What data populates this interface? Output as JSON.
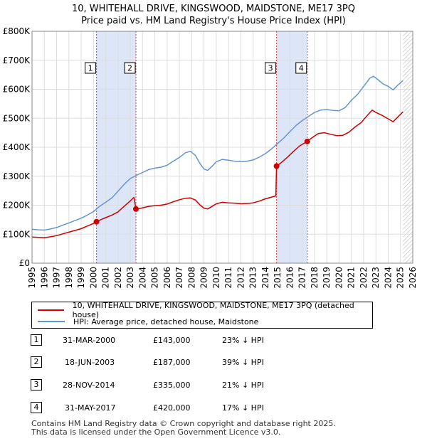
{
  "title_line1": "10, WHITEHALL DRIVE, KINGSWOOD, MAIDSTONE, ME17 3PQ",
  "title_line2": "Price paid vs. HM Land Registry's House Price Index (HPI)",
  "colors": {
    "property": "#cc0000",
    "hpi": "#6495d1",
    "shade": "#dde6f8",
    "marker_line": "#d04040",
    "grid": "#dddddd"
  },
  "chart_data": {
    "type": "line",
    "x_range": [
      1995,
      2026
    ],
    "ylim": [
      0,
      800000
    ],
    "y_ticks": [
      0,
      100000,
      200000,
      300000,
      400000,
      500000,
      600000,
      700000,
      800000
    ],
    "y_tick_labels": [
      "£0",
      "£100K",
      "£200K",
      "£300K",
      "£400K",
      "£500K",
      "£600K",
      "£700K",
      "£800K"
    ],
    "x_ticks": [
      1995,
      1996,
      1997,
      1998,
      1999,
      2000,
      2001,
      2002,
      2003,
      2004,
      2005,
      2006,
      2007,
      2008,
      2009,
      2010,
      2011,
      2012,
      2013,
      2014,
      2015,
      2016,
      2017,
      2018,
      2019,
      2020,
      2021,
      2022,
      2023,
      2024,
      2025,
      2026
    ],
    "x_tick_labels": [
      "1995",
      "1996",
      "1997",
      "1998",
      "1999",
      "2000",
      "2001",
      "2002",
      "2003",
      "2004",
      "2005",
      "2006",
      "2007",
      "2008",
      "2009",
      "2010",
      "2011",
      "2012",
      "2013",
      "2014",
      "2015",
      "2016",
      "2017",
      "2018",
      "2019",
      "2020",
      "2021",
      "2022",
      "2023",
      "2024",
      "2025",
      "2026"
    ],
    "shaded_ranges": [
      [
        2000.25,
        2003.46
      ],
      [
        2014.91,
        2017.41
      ]
    ],
    "forecast_start": 2025.2,
    "series": [
      {
        "name": "10, WHITEHALL DRIVE, KINGSWOOD, MAIDSTONE, ME17 3PQ (detached house)",
        "points": [
          [
            1995.0,
            90000
          ],
          [
            1995.5,
            89000
          ],
          [
            1996.0,
            88000
          ],
          [
            1996.5,
            91000
          ],
          [
            1997.0,
            95000
          ],
          [
            1997.5,
            101000
          ],
          [
            1998.0,
            107000
          ],
          [
            1998.5,
            113000
          ],
          [
            1999.0,
            119000
          ],
          [
            1999.5,
            128000
          ],
          [
            2000.0,
            137000
          ],
          [
            2000.25,
            143000
          ],
          [
            2000.7,
            152000
          ],
          [
            2001.0,
            157000
          ],
          [
            2001.5,
            166000
          ],
          [
            2002.0,
            177000
          ],
          [
            2002.5,
            196000
          ],
          [
            2003.0,
            215000
          ],
          [
            2003.3,
            227000
          ],
          [
            2003.46,
            187000
          ],
          [
            2003.8,
            189000
          ],
          [
            2004.5,
            196000
          ],
          [
            2005.0,
            198000
          ],
          [
            2005.5,
            200000
          ],
          [
            2006.0,
            204000
          ],
          [
            2006.5,
            212000
          ],
          [
            2007.0,
            219000
          ],
          [
            2007.5,
            224000
          ],
          [
            2007.9,
            225000
          ],
          [
            2008.3,
            218000
          ],
          [
            2008.7,
            200000
          ],
          [
            2009.0,
            190000
          ],
          [
            2009.3,
            187000
          ],
          [
            2009.7,
            197000
          ],
          [
            2010.0,
            205000
          ],
          [
            2010.5,
            210000
          ],
          [
            2011.0,
            208000
          ],
          [
            2011.5,
            207000
          ],
          [
            2012.0,
            205000
          ],
          [
            2012.5,
            206000
          ],
          [
            2013.0,
            208000
          ],
          [
            2013.5,
            214000
          ],
          [
            2014.0,
            222000
          ],
          [
            2014.5,
            228000
          ],
          [
            2014.85,
            232000
          ],
          [
            2014.91,
            335000
          ],
          [
            2015.3,
            347000
          ],
          [
            2015.8,
            366000
          ],
          [
            2016.3,
            386000
          ],
          [
            2016.8,
            405000
          ],
          [
            2017.41,
            420000
          ],
          [
            2017.8,
            433000
          ],
          [
            2018.3,
            447000
          ],
          [
            2018.8,
            450000
          ],
          [
            2019.3,
            445000
          ],
          [
            2019.8,
            440000
          ],
          [
            2020.3,
            441000
          ],
          [
            2020.8,
            452000
          ],
          [
            2021.3,
            470000
          ],
          [
            2021.8,
            485000
          ],
          [
            2022.3,
            510000
          ],
          [
            2022.7,
            528000
          ],
          [
            2023.0,
            520000
          ],
          [
            2023.5,
            510000
          ],
          [
            2024.0,
            498000
          ],
          [
            2024.4,
            488000
          ],
          [
            2024.8,
            505000
          ],
          [
            2025.2,
            522000
          ]
        ]
      },
      {
        "name": "HPI: Average price, detached house, Maidstone",
        "points": [
          [
            1995.0,
            117000
          ],
          [
            1995.5,
            115000
          ],
          [
            1996.0,
            114000
          ],
          [
            1996.5,
            118000
          ],
          [
            1997.0,
            123000
          ],
          [
            1997.5,
            131000
          ],
          [
            1998.0,
            139000
          ],
          [
            1998.5,
            147000
          ],
          [
            1999.0,
            155000
          ],
          [
            1999.5,
            166000
          ],
          [
            2000.0,
            178000
          ],
          [
            2000.5,
            196000
          ],
          [
            2001.0,
            210000
          ],
          [
            2001.5,
            225000
          ],
          [
            2002.0,
            248000
          ],
          [
            2002.5,
            272000
          ],
          [
            2003.0,
            292000
          ],
          [
            2003.5,
            303000
          ],
          [
            2004.0,
            313000
          ],
          [
            2004.5,
            323000
          ],
          [
            2005.0,
            328000
          ],
          [
            2005.5,
            331000
          ],
          [
            2006.0,
            338000
          ],
          [
            2006.5,
            352000
          ],
          [
            2007.0,
            365000
          ],
          [
            2007.5,
            381000
          ],
          [
            2007.9,
            386000
          ],
          [
            2008.3,
            372000
          ],
          [
            2008.7,
            342000
          ],
          [
            2009.0,
            325000
          ],
          [
            2009.3,
            320000
          ],
          [
            2009.7,
            336000
          ],
          [
            2010.0,
            350000
          ],
          [
            2010.5,
            358000
          ],
          [
            2011.0,
            355000
          ],
          [
            2011.5,
            352000
          ],
          [
            2012.0,
            350000
          ],
          [
            2012.5,
            352000
          ],
          [
            2013.0,
            356000
          ],
          [
            2013.5,
            366000
          ],
          [
            2014.0,
            378000
          ],
          [
            2014.5,
            394000
          ],
          [
            2015.0,
            413000
          ],
          [
            2015.5,
            432000
          ],
          [
            2016.0,
            454000
          ],
          [
            2016.5,
            475000
          ],
          [
            2017.0,
            492000
          ],
          [
            2017.5,
            506000
          ],
          [
            2018.0,
            520000
          ],
          [
            2018.5,
            528000
          ],
          [
            2019.0,
            530000
          ],
          [
            2019.5,
            527000
          ],
          [
            2020.0,
            526000
          ],
          [
            2020.5,
            537000
          ],
          [
            2021.0,
            562000
          ],
          [
            2021.5,
            582000
          ],
          [
            2022.0,
            610000
          ],
          [
            2022.5,
            638000
          ],
          [
            2022.8,
            645000
          ],
          [
            2023.2,
            632000
          ],
          [
            2023.6,
            618000
          ],
          [
            2024.0,
            610000
          ],
          [
            2024.4,
            598000
          ],
          [
            2024.8,
            615000
          ],
          [
            2025.2,
            630000
          ]
        ]
      }
    ],
    "sale_markers": [
      {
        "label": "1",
        "x": 2000.25,
        "y": 143000
      },
      {
        "label": "2",
        "x": 2003.46,
        "y": 187000
      },
      {
        "label": "3",
        "x": 2014.91,
        "y": 335000
      },
      {
        "label": "4",
        "x": 2017.41,
        "y": 420000
      }
    ]
  },
  "legend": {
    "property": "10, WHITEHALL DRIVE, KINGSWOOD, MAIDSTONE, ME17 3PQ (detached house)",
    "hpi": "HPI: Average price, detached house, Maidstone"
  },
  "sales": [
    {
      "num": "1",
      "date": "31-MAR-2000",
      "price": "£143,000",
      "hpi": "23% ↓ HPI"
    },
    {
      "num": "2",
      "date": "18-JUN-2003",
      "price": "£187,000",
      "hpi": "39% ↓ HPI"
    },
    {
      "num": "3",
      "date": "28-NOV-2014",
      "price": "£335,000",
      "hpi": "21% ↓ HPI"
    },
    {
      "num": "4",
      "date": "31-MAY-2017",
      "price": "£420,000",
      "hpi": "17% ↓ HPI"
    }
  ],
  "footer_line1": "Contains HM Land Registry data © Crown copyright and database right 2025.",
  "footer_line2": "This data is licensed under the Open Government Licence v3.0."
}
